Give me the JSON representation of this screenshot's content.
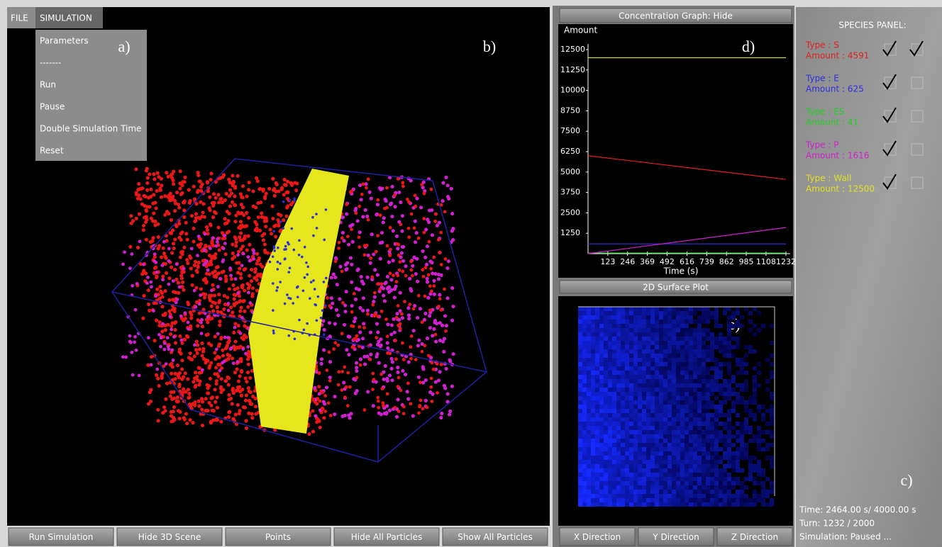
{
  "menu": {
    "items": [
      "FILE",
      "SIMULATION"
    ],
    "simulation_items": [
      "Parameters",
      "-------",
      "Run",
      "Pause",
      "Double Simulation Time",
      "Reset"
    ]
  },
  "annotations": {
    "a": "a)",
    "b": "b)",
    "c": "c)",
    "d": "d)",
    "e": "e)"
  },
  "scene_buttons": [
    "Run Simulation",
    "Hide 3D Scene",
    "Points",
    "Hide All Particles",
    "Show All Particles"
  ],
  "concentration_graph": {
    "toggle": "Concentration Graph: Hide",
    "type": "line",
    "y_label": "Amount",
    "x_label": "Time (s)",
    "x": [
      0,
      1232
    ],
    "xlim": [
      0,
      1232
    ],
    "xticks": [
      123,
      246,
      369,
      492,
      616,
      739,
      862,
      985,
      1108,
      1232
    ],
    "ylim": [
      0,
      12500
    ],
    "yticks": [
      1250,
      2500,
      3750,
      5000,
      6250,
      7500,
      8750,
      10000,
      11250,
      12500
    ],
    "series": [
      {
        "name": "S",
        "color": "#e02020",
        "values": [
          6000,
          4550
        ]
      },
      {
        "name": "E",
        "color": "#3030e0",
        "values": [
          600,
          600
        ]
      },
      {
        "name": "ES",
        "color": "#20d020",
        "values": [
          41,
          41
        ]
      },
      {
        "name": "P",
        "color": "#d020d0",
        "values": [
          0,
          1600
        ]
      },
      {
        "name": "Wall",
        "color": "#d8d820",
        "values": [
          12000,
          12000
        ]
      }
    ]
  },
  "surface_plot": {
    "title": "2D Surface Plot",
    "buttons": [
      "X Direction",
      "Y Direction",
      "Z Direction"
    ]
  },
  "species_panel": {
    "title": "SPECIES PANEL:",
    "species": [
      {
        "type": "Type : S",
        "amount": "Amount : 4591",
        "color": "#e02020",
        "checks": [
          true,
          true
        ]
      },
      {
        "type": "Type : E",
        "amount": "Amount : 625",
        "color": "#3030e0",
        "checks": [
          true,
          false
        ]
      },
      {
        "type": "Type : ES",
        "amount": "Amount : 41",
        "color": "#20d020",
        "checks": [
          true,
          false
        ]
      },
      {
        "type": "Type : P",
        "amount": "Amount : 1616",
        "color": "#d020d0",
        "checks": [
          true,
          false
        ]
      },
      {
        "type": "Type : Wall",
        "amount": "Amount : 12500",
        "color": "#e0e020",
        "checks": [
          true,
          false
        ]
      }
    ]
  },
  "status": [
    "Time: 2464.00 s/ 4000.00 s",
    "Turn: 1232 / 2000",
    "Simulation: Paused ..."
  ]
}
